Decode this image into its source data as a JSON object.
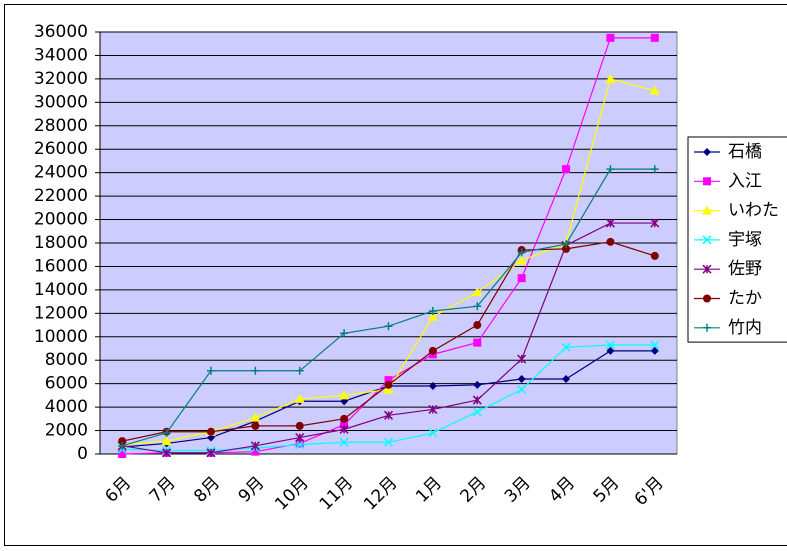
{
  "chart_data": {
    "type": "line",
    "categories": [
      "6月",
      "7月",
      "8月",
      "9月",
      "10月",
      "11月",
      "12月",
      "1月",
      "2月",
      "3月",
      "4月",
      "5月",
      "6'月"
    ],
    "ylim": [
      0,
      36000
    ],
    "yticks": [
      0,
      2000,
      4000,
      6000,
      8000,
      10000,
      12000,
      14000,
      16000,
      18000,
      20000,
      22000,
      24000,
      26000,
      28000,
      30000,
      32000,
      34000,
      36000
    ],
    "grid": true,
    "legend": "right",
    "series": [
      {
        "name": "石橋",
        "color": "#000080",
        "marker": "diamond",
        "values": [
          600,
          900,
          1400,
          2800,
          4500,
          4500,
          5800,
          5800,
          5900,
          6400,
          6400,
          8800,
          8800
        ]
      },
      {
        "name": "入江",
        "color": "#ff00ff",
        "marker": "square",
        "values": [
          0,
          100,
          100,
          200,
          900,
          2500,
          6300,
          8500,
          9500,
          15000,
          24300,
          35500,
          35500
        ]
      },
      {
        "name": "いわた",
        "color": "#ffff00",
        "marker": "triangle",
        "values": [
          800,
          1100,
          1900,
          3100,
          4700,
          5000,
          5500,
          11700,
          13800,
          16500,
          18000,
          32000,
          31000
        ]
      },
      {
        "name": "宇塚",
        "color": "#00ffff",
        "marker": "x",
        "values": [
          400,
          300,
          300,
          500,
          800,
          1000,
          1000,
          1800,
          3600,
          5500,
          9100,
          9300,
          9300
        ]
      },
      {
        "name": "佐野",
        "color": "#800080",
        "marker": "star",
        "values": [
          700,
          100,
          100,
          700,
          1400,
          2100,
          3300,
          3800,
          4600,
          8100,
          17800,
          19700,
          19700
        ]
      },
      {
        "name": "たか",
        "color": "#800000",
        "marker": "circle",
        "values": [
          1100,
          1900,
          1900,
          2400,
          2400,
          3000,
          5900,
          8800,
          11000,
          17400,
          17500,
          18100,
          16900
        ]
      },
      {
        "name": "竹内",
        "color": "#008080",
        "marker": "plus",
        "values": [
          700,
          1800,
          7100,
          7100,
          7100,
          10300,
          10900,
          12200,
          12600,
          17200,
          17900,
          24300,
          24300
        ]
      }
    ]
  }
}
